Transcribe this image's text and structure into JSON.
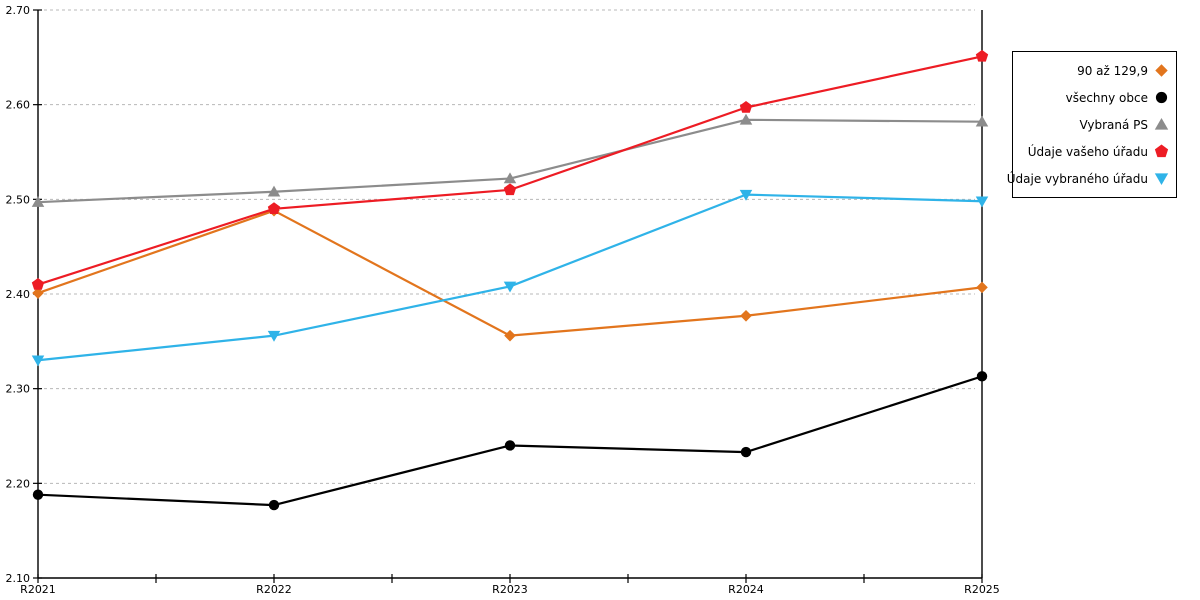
{
  "chart_data": {
    "type": "line",
    "x": [
      "R2021",
      "R2022",
      "R2023",
      "R2024",
      "R2025"
    ],
    "series": [
      {
        "name": "90 až 129,9",
        "color": "#E2751D",
        "marker": "diamond",
        "values": [
          2.401,
          2.488,
          2.356,
          2.377,
          2.407
        ]
      },
      {
        "name": "všechny obce",
        "color": "#000000",
        "marker": "circle",
        "values": [
          2.188,
          2.177,
          2.24,
          2.233,
          2.313
        ]
      },
      {
        "name": "Vybraná PS",
        "color": "#8C8C8C",
        "marker": "triangle-up",
        "values": [
          2.497,
          2.508,
          2.522,
          2.584,
          2.582
        ]
      },
      {
        "name": "Údaje vašeho úřadu",
        "color": "#ED1C24",
        "marker": "pentagon",
        "values": [
          2.41,
          2.49,
          2.51,
          2.597,
          2.651
        ]
      },
      {
        "name": "Údaje vybraného úřadu",
        "color": "#2FB3E8",
        "marker": "triangle-down",
        "values": [
          2.33,
          2.356,
          2.408,
          2.505,
          2.498
        ]
      }
    ],
    "ylim": [
      2.1,
      2.7
    ],
    "yticks": [
      2.1,
      2.2,
      2.3,
      2.4,
      2.5,
      2.6,
      2.7
    ],
    "ytick_labels": [
      "2.10",
      "2.20",
      "2.30",
      "2.40",
      "2.50",
      "2.60",
      "2.70"
    ],
    "xlabel": "",
    "ylabel": "",
    "title": "",
    "grid": "horizontal-dashed",
    "grid_color": "#b8b8b8",
    "axis_color": "#000000",
    "legend_position": "right",
    "legend_border_color": "#000000"
  }
}
